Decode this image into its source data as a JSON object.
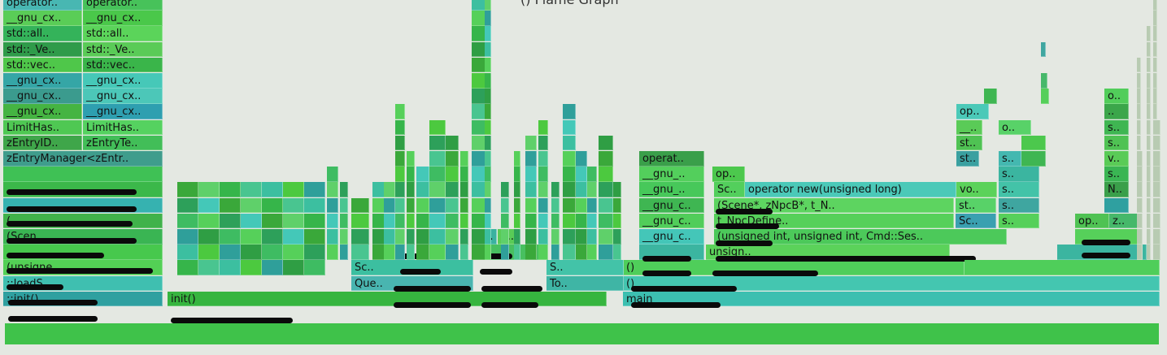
{
  "title": "() Flame Graph",
  "colors": [
    "#4cc93f",
    "#3aa83a",
    "#2f9e44",
    "#36b54a",
    "#56d05a",
    "#3cbfa0",
    "#44c8b8",
    "#2f9f9a",
    "#5fd06a",
    "#3ebc62",
    "#49c590",
    "#2da05a"
  ],
  "left_stack": [
    {
      "label": "operator..",
      "label2": "operator..",
      "c": "#48b7b2",
      "c2": "#47c25a"
    },
    {
      "label": "__gnu_cx..",
      "label2": "__gnu_cx..",
      "c": "#5acd57",
      "c2": "#4ac84a"
    },
    {
      "label": "std::all..",
      "label2": "std::all..",
      "c": "#34b35a",
      "c2": "#5bd45a"
    },
    {
      "label": "std::_Ve..",
      "label2": "std::_Ve..",
      "c": "#2f9b4a",
      "c2": "#5acb57"
    },
    {
      "label": "std::vec..",
      "label2": "std::vec..",
      "c": "#4fc74a",
      "c2": "#3ab54a"
    },
    {
      "label": "__gnu_cx..",
      "label2": "__gnu_cx..",
      "c": "#35a6a6",
      "c2": "#46c8b8"
    },
    {
      "label": "__gnu_cx..",
      "label2": "__gnu_cx..",
      "c": "#3b9b8e",
      "c2": "#4cc7b8"
    },
    {
      "label": "__gnu_cx..",
      "label2": "__gnu_cx..",
      "c": "#45b442",
      "c2": "#2e9fb0"
    },
    {
      "label": "LimitHas..",
      "label2": "LimitHas..",
      "c": "#4fc853",
      "c2": "#55d260"
    },
    {
      "label": "zEntryID..",
      "label2": "zEntryTe..",
      "c": "#3fa64a",
      "c2": "#42be58"
    },
    {
      "label": "zEntryManager<zEntr..",
      "c": "#3f9d8c"
    },
    {
      "label": "",
      "c": "#3fc155"
    },
    {
      "label": "",
      "c": "#3bb84a"
    },
    {
      "label": "",
      "c": "#36b2b0"
    },
    {
      "label": "(..",
      "c": "#40b24a"
    },
    {
      "label": "(Scen..",
      "c": "#3ab553"
    },
    {
      "label": "",
      "c": "#47c84d"
    },
    {
      "label": "(unsigne..",
      "c": "#53d055"
    },
    {
      "label": "::loadS..",
      "c": "#3fbfb0"
    },
    {
      "label": "::init()",
      "c": "#2fa0a0"
    }
  ],
  "mid_labels": {
    "sc1": "Sc..",
    "que": "Que..",
    "s_o": "S..",
    "o_small": "o..",
    "sc2": "S..",
    "to": "To..",
    "init_close": "()",
    "service_init": "init()"
  },
  "right_block": {
    "operat": "operat..",
    "gnu1": "__gnu_..",
    "gnu2": "__gnu_..",
    "gnu3": "__gnu_c..",
    "gnu4": "__gnu_c..",
    "gnu5": "__gnu_c..",
    "op": "op..",
    "sc": "Sc..",
    "operator_new": "operator new(unsigned long)",
    "vo": "vo..",
    "create_scene": "(Scene*, zNpcB*, t_N..",
    "st1": "st..",
    "npc_define": "t_NpcDefine..",
    "sc_small": "Sc..",
    "init_sig": "(unsigned int, unsigned int, Cmd::Ses..",
    "load_unsign": "unsign..",
    "main_close": "()",
    "main_call": "()",
    "main": "main"
  },
  "right_cols": {
    "op": "op..",
    "u": "__..",
    "o": "o..",
    "st": "st..",
    "s": "s..",
    "st2": "st..",
    "s2": "s..",
    "vo": "vo..",
    "s3": "s..",
    "st3": "st..",
    "s4": "s..",
    "sc": "Sc..",
    "s5": "s..",
    "op2": "op..",
    "z": "z..",
    "o_far": "o..",
    "dots": "..",
    "s_far": "s..",
    "s_far2": "s..",
    "v_far": "v..",
    "s_far3": "s..",
    "n_far": "N.."
  }
}
